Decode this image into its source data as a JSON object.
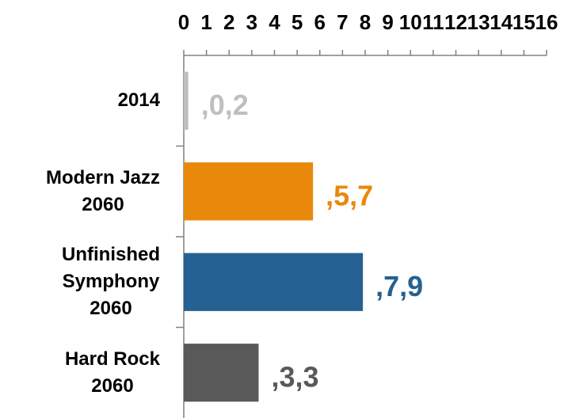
{
  "chart_data": {
    "type": "hbar",
    "categories": [
      "2014",
      "Modern Jazz\n2060",
      "Unfinished\nSymphony\n2060",
      "Hard Rock\n2060"
    ],
    "values": [
      0.2,
      5.7,
      7.9,
      3.3
    ],
    "value_labels": [
      ",0,2",
      ",5,7",
      ",7,9",
      ",3,3"
    ],
    "colors": [
      "#bfbfbf",
      "#e8890c",
      "#256192",
      "#595959"
    ],
    "xlim": [
      0,
      16
    ],
    "xticks": [
      0,
      1,
      2,
      3,
      4,
      5,
      6,
      7,
      8,
      9,
      10,
      11,
      12,
      13,
      14,
      15,
      16
    ]
  }
}
